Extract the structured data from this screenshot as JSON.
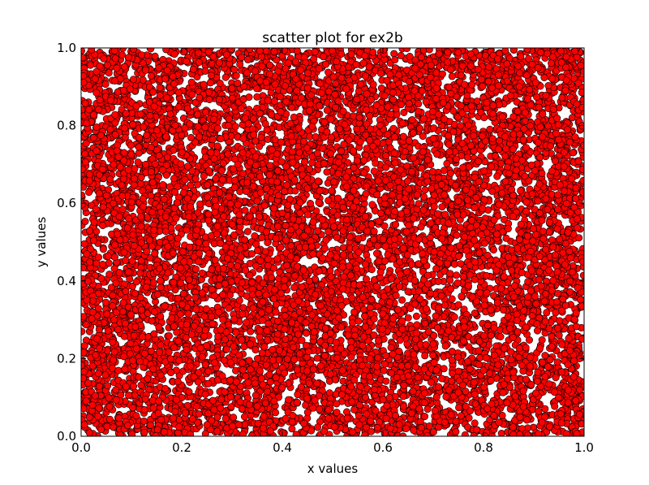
{
  "chart_data": {
    "type": "scatter",
    "title": "scatter plot for ex2b",
    "xlabel": "x values",
    "ylabel": "y values",
    "xlim": [
      0.0,
      1.0
    ],
    "ylim": [
      0.0,
      1.0
    ],
    "xticks": [
      "0.0",
      "0.2",
      "0.4",
      "0.6",
      "0.8",
      "1.0"
    ],
    "yticks": [
      "0.0",
      "0.2",
      "0.4",
      "0.6",
      "0.8",
      "1.0"
    ],
    "grid": false,
    "distribution": "uniform",
    "point_count": 10000,
    "marker": "circle",
    "marker_color": "#ff0000",
    "marker_edge_color": "#000000"
  }
}
